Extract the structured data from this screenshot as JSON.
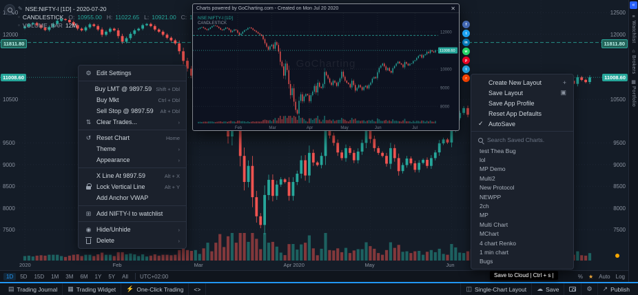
{
  "colors": {
    "bg": "#141c27",
    "up": "#26a69a",
    "down": "#ef5350",
    "accent": "#2196f3",
    "panel": "#1b212c",
    "text": "#d1d4dc",
    "muted": "#8b93a0"
  },
  "legend": {
    "symbol": "NSE:NIFTY-I [1D] - 2020-07-20",
    "series": "CANDLESTICK",
    "o_label": "O:",
    "o": "10955.00",
    "h_label": "H:",
    "h": "11022.65",
    "l_label": "L:",
    "l": "10921.00",
    "c_label": "C:",
    "c": "11008.6",
    "volume": "VOLUME_BAR",
    "volume_value": "12M"
  },
  "price_axis": {
    "labels": [
      {
        "text": "12500",
        "price": 12500
      },
      {
        "text": "12000",
        "price": 12000
      },
      {
        "text": "10500",
        "price": 10500
      },
      {
        "text": "9500",
        "price": 9500
      },
      {
        "text": "9000",
        "price": 9000
      },
      {
        "text": "8500",
        "price": 8500
      },
      {
        "text": "8000",
        "price": 8000
      },
      {
        "text": "7500",
        "price": 7500
      }
    ],
    "badges": [
      {
        "text": "11811.80",
        "price": 11811.8,
        "kind": "prev"
      },
      {
        "text": "11008.60",
        "price": 11008.6,
        "kind": "last"
      }
    ]
  },
  "time_axis": [
    {
      "label": "2020",
      "idx": 0
    },
    {
      "label": "Feb",
      "idx": 23
    },
    {
      "label": "Mar",
      "idx": 43
    },
    {
      "label": "Apr 2020",
      "idx": 65
    },
    {
      "label": "May",
      "idx": 85
    },
    {
      "label": "Jun",
      "idx": 105
    }
  ],
  "chart_data": {
    "type": "candlestick",
    "symbol": "NSE:NIFTY-I",
    "interval": "1D",
    "date": "2020-07-20",
    "ohlc_current": {
      "open": 10955.0,
      "high": 11022.65,
      "low": 10921.0,
      "close": 11008.6
    },
    "y_domain": [
      7150,
      12790
    ],
    "levels": [
      12500,
      12000,
      10500,
      9500,
      9000,
      8500,
      8000,
      7500
    ],
    "prev_close_line": 11811.8,
    "last_price_line": 11008.6,
    "month_starts": [
      0,
      23,
      43,
      65,
      85,
      105,
      127
    ],
    "closes": [
      12180,
      12230,
      12260,
      12210,
      12150,
      12100,
      12170,
      12240,
      12310,
      12350,
      12330,
      12280,
      12210,
      12130,
      12090,
      12160,
      12230,
      12190,
      12110,
      11990,
      12060,
      12130,
      12090,
      11960,
      11830,
      11910,
      12010,
      12090,
      12130,
      12210,
      12240,
      12190,
      12110,
      12060,
      11990,
      11920,
      11860,
      11790,
      11610,
      11390,
      11210,
      11050,
      11230,
      11320,
      11100,
      11450,
      11300,
      10950,
      10400,
      10150,
      9650,
      10300,
      9950,
      9200,
      8600,
      8970,
      8250,
      7810,
      7610,
      8300,
      8650,
      8280,
      8540,
      8660,
      8598,
      8280,
      8600,
      8790,
      9100,
      8750,
      9270,
      9050,
      8990,
      9200,
      9850,
      9670,
      9500,
      9280,
      9150,
      9380,
      9270,
      9100,
      9300,
      9500,
      9860,
      9590,
      9380,
      9270,
      9200,
      9020,
      9380,
      9150,
      8850,
      8990,
      9140,
      9030,
      8880,
      9040,
      9110,
      8970,
      9150,
      9280,
      9490,
      9580,
      9510,
      9830,
      10070,
      10190,
      10300,
      10150,
      9950,
      10060,
      9900,
      9810,
      10050,
      10170,
      10300,
      10400,
      10310,
      10250,
      10100,
      10380,
      10290,
      10200,
      10290,
      10310,
      10430,
      10480,
      10600,
      10710,
      10770,
      10620,
      10750,
      10800,
      10930,
      10860,
      11010,
      10950,
      10900,
      11008.6
    ]
  },
  "context_menu": {
    "items": [
      {
        "id": "edit-settings",
        "icon": "gear",
        "label": "Edit Settings"
      },
      {
        "divider": true
      },
      {
        "id": "buy-lmt",
        "label": "Buy LMT @ 9897.59",
        "shortcut": "Shift + Dbl"
      },
      {
        "id": "buy-mkt",
        "label": "Buy Mkt",
        "shortcut": "Ctrl + Dbl"
      },
      {
        "id": "sell-stop",
        "label": "Sell Stop @ 9897.59",
        "shortcut": "Alt + Dbl"
      },
      {
        "id": "clear-trades",
        "icon": "sliders",
        "label": "Clear Trades...",
        "submenu": true
      },
      {
        "divider": true
      },
      {
        "id": "reset-chart",
        "icon": "reset",
        "label": "Reset Chart",
        "shortcut": "Home"
      },
      {
        "id": "theme",
        "label": "Theme",
        "submenu": true
      },
      {
        "id": "appearance",
        "label": "Appearance",
        "submenu": true
      },
      {
        "divider": true
      },
      {
        "id": "x-line",
        "label": "X Line At 9897.59",
        "shortcut": "Alt + X"
      },
      {
        "id": "lock-vertical-line",
        "icon": "lock",
        "label": "Lock Vertical Line",
        "shortcut": "Alt + Y"
      },
      {
        "id": "add-anchor-vwap",
        "label": "Add Anchor VWAP"
      },
      {
        "divider": true
      },
      {
        "id": "add-to-watchlist",
        "icon": "list-add",
        "label": "Add NIFTY-I to watchlist"
      },
      {
        "divider": true
      },
      {
        "id": "hide-unhide",
        "icon": "eye",
        "label": "Hide/Unhide",
        "submenu": true
      },
      {
        "id": "delete",
        "icon": "trash",
        "label": "Delete",
        "submenu": true
      }
    ]
  },
  "layout_menu": {
    "items": [
      {
        "id": "create-new-layout",
        "label": "Create New Layout",
        "right_icon": "plus"
      },
      {
        "id": "save-layout",
        "label": "Save Layout",
        "right_icon": "floppy"
      },
      {
        "id": "save-app-profile",
        "label": "Save App Profile"
      },
      {
        "id": "reset-app-defaults",
        "label": "Reset App Defaults"
      },
      {
        "id": "autosave",
        "label": "AutoSave",
        "checked": true
      }
    ],
    "search_placeholder": "Search Saved Charts.",
    "saved_charts": [
      "test Thea Bug",
      "lol",
      "MP Demo",
      "Multi2",
      "New Protocol",
      "NEWPP",
      "2ch",
      "MP",
      "Multi Chart",
      "MChart",
      "4 chart Renko",
      "1 min chart",
      "Bugs"
    ]
  },
  "preview_popup": {
    "title": "Charts powered by GoCharting.com - Created on Mon Jul 20 2020",
    "legend": "NSE:NIFTY-I [1D]",
    "legend2": "CANDLESTICK",
    "watermark": "GoCharting",
    "badge": "11008.60",
    "x_labels": [
      "Feb",
      "Mar",
      "Apr",
      "May",
      "Jun",
      "Jul"
    ],
    "y_labels": [
      "12000",
      "11000",
      "10000",
      "9000",
      "8000"
    ]
  },
  "share_buttons": [
    {
      "name": "facebook",
      "color": "#4267B2",
      "glyph": "f"
    },
    {
      "name": "twitter",
      "color": "#1DA1F2",
      "glyph": "t"
    },
    {
      "name": "linkedin",
      "color": "#0077B5",
      "glyph": "in"
    },
    {
      "name": "whatsapp",
      "color": "#25D366",
      "glyph": "w"
    },
    {
      "name": "pinterest",
      "color": "#E60023",
      "glyph": "p"
    },
    {
      "name": "telegram",
      "color": "#229ED9",
      "glyph": "t"
    },
    {
      "name": "reddit",
      "color": "#FF4500",
      "glyph": "r"
    }
  ],
  "timeframe_bar": {
    "timeframes": [
      "1D",
      "5D",
      "15D",
      "1M",
      "3M",
      "6M",
      "1Y",
      "5Y",
      "All"
    ],
    "active": "1D",
    "timezone": "UTC+02:00",
    "percent_label": "%",
    "auto_label": "Auto",
    "log_label": "Log"
  },
  "footer": {
    "left": [
      {
        "id": "trading-journal",
        "label": "Trading Journal",
        "icon": "journal"
      },
      {
        "id": "trading-widget",
        "label": "Trading Widget",
        "icon": "widget"
      },
      {
        "id": "one-click-trading",
        "label": "One-Click Trading",
        "icon": "bolt"
      },
      {
        "id": "code-panel",
        "label": "<>"
      }
    ],
    "right": [
      {
        "id": "single-chart-layout",
        "label": "Single-Chart Layout",
        "icon": "layoutgrid"
      },
      {
        "id": "save",
        "label": "Save",
        "icon": "cloud"
      },
      {
        "id": "snapshot",
        "icon": "camera"
      },
      {
        "id": "app-settings",
        "icon": "gear"
      },
      {
        "id": "publish",
        "label": "Publish",
        "icon": "publish"
      }
    ]
  },
  "tooltip": "Save to Cloud | Ctrl + s |",
  "side_tabs": [
    {
      "id": "watchlist",
      "label": "Watchlist",
      "icon": "watchlist"
    },
    {
      "id": "brokers",
      "label": "Brokers",
      "icon": "brokers"
    },
    {
      "id": "portfolio",
      "label": "Portfolio",
      "icon": "portfolio"
    }
  ]
}
